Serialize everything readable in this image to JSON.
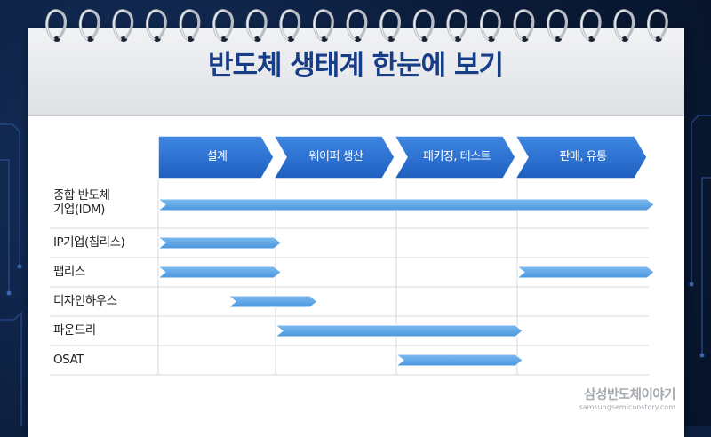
{
  "title": "반도체 생태계 한눈에 보기",
  "stages": [
    "설계",
    "웨이퍼 생산",
    "패키징, 테스트",
    "판매, 유통"
  ],
  "rows": [
    {
      "label_lines": [
        "종합 반도체",
        "기업(IDM)"
      ],
      "bars": [
        [
          0,
          4
        ]
      ]
    },
    {
      "label_lines": [
        "IP기업(칩리스)"
      ],
      "bars": [
        [
          0,
          1
        ]
      ]
    },
    {
      "label_lines": [
        "팹리스"
      ],
      "bars": [
        [
          0,
          1
        ],
        [
          3,
          4
        ]
      ]
    },
    {
      "label_lines": [
        "디자인하우스"
      ],
      "bars": [
        [
          0.6,
          1.3
        ]
      ]
    },
    {
      "label_lines": [
        "파운드리"
      ],
      "bars": [
        [
          1,
          3
        ]
      ]
    },
    {
      "label_lines": [
        "OSAT"
      ],
      "bars": [
        [
          2,
          3
        ]
      ]
    }
  ],
  "logo": {
    "name": "삼성반도체이야기",
    "url": "samsungsemiconstory.com"
  },
  "colors": {
    "title": "#173d87",
    "stage_arrow": "#2f73d3",
    "bar": "#5aa6e6",
    "background": "#0c1f3f"
  }
}
